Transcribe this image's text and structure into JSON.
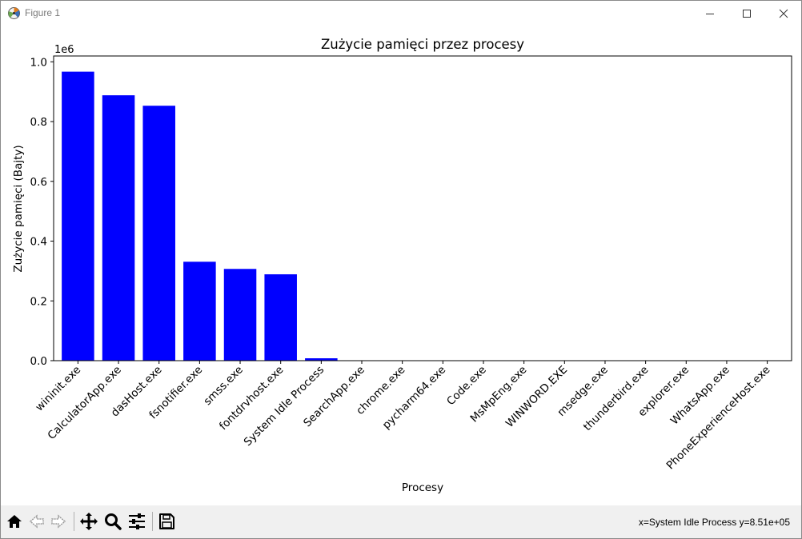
{
  "window": {
    "title": "Figure 1"
  },
  "status": {
    "coords": "x=System Idle Process y=8.51e+05"
  },
  "icons": {
    "app": "matplotlib-figure-icon",
    "minimize": "minimize-icon",
    "maximize": "maximize-icon",
    "close": "close-icon",
    "home": "home-icon",
    "back": "back-arrow-icon",
    "forward": "forward-arrow-icon",
    "pan": "pan-move-icon",
    "zoom": "zoom-magnifier-icon",
    "configure": "configure-subplots-icon",
    "save": "save-floppy-icon"
  },
  "chart_data": {
    "type": "bar",
    "title": "Zużycie pamięci przez procesy",
    "xlabel": "Procesy",
    "ylabel": "Zużycie pamięci (Bajty)",
    "offset_text": "1e6",
    "ylim": [
      0,
      1.0195
    ],
    "yticks": [
      "0.0",
      "0.2",
      "0.4",
      "0.6",
      "0.8",
      "1.0"
    ],
    "ytick_values": [
      0,
      0.2,
      0.4,
      0.6,
      0.8,
      1.0
    ],
    "bar_color": "#0000ff",
    "categories": [
      "wininit.exe",
      "CalculatorApp.exe",
      "dasHost.exe",
      "fsnotifier.exe",
      "smss.exe",
      "fontdrvhost.exe",
      "System Idle Process",
      "SearchApp.exe",
      "chrome.exe",
      "pycharm64.exe",
      "Code.exe",
      "MsMpEng.exe",
      "WINWORD.EXE",
      "msedge.exe",
      "thunderbird.exe",
      "explorer.exe",
      "WhatsApp.exe",
      "PhoneExperienceHost.exe"
    ],
    "values": [
      0.967,
      0.888,
      0.853,
      0.331,
      0.307,
      0.289,
      0.008,
      0.0003,
      0.0003,
      0.0003,
      0.0003,
      0.0003,
      0.0003,
      0.0003,
      0.0003,
      0.0003,
      0.0003,
      0.0003
    ]
  }
}
